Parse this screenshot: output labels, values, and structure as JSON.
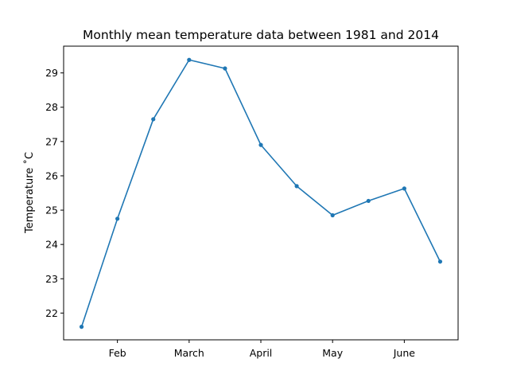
{
  "chart_data": {
    "type": "line",
    "title": "Monthly mean temperature data between 1981 and 2014",
    "xlabel": "",
    "ylabel": "Temperature $^\\circ$C",
    "ylabel_display": "Temperature ˚C",
    "x_tick_labels": [
      "Feb",
      "March",
      "April",
      "May",
      "June"
    ],
    "y_tick_labels": [
      "22",
      "23",
      "24",
      "25",
      "26",
      "27",
      "28",
      "29"
    ],
    "y_ticks": [
      22,
      23,
      24,
      25,
      26,
      27,
      28,
      29
    ],
    "ylim": [
      21.22,
      29.78
    ],
    "x": [
      0.5,
      1.0,
      1.5,
      2.0,
      2.5,
      3.0,
      3.5,
      4.0,
      4.5,
      5.0,
      5.5
    ],
    "x_ticks": [
      1,
      2,
      3,
      4,
      5
    ],
    "xlim": [
      0.25,
      5.75
    ],
    "series": [
      {
        "color": "#1f77b4",
        "marker": "dot",
        "values": [
          21.6,
          24.75,
          27.65,
          29.38,
          29.13,
          26.9,
          25.7,
          24.85,
          25.27,
          25.63,
          23.5
        ]
      }
    ],
    "grid": false,
    "legend": "none"
  }
}
